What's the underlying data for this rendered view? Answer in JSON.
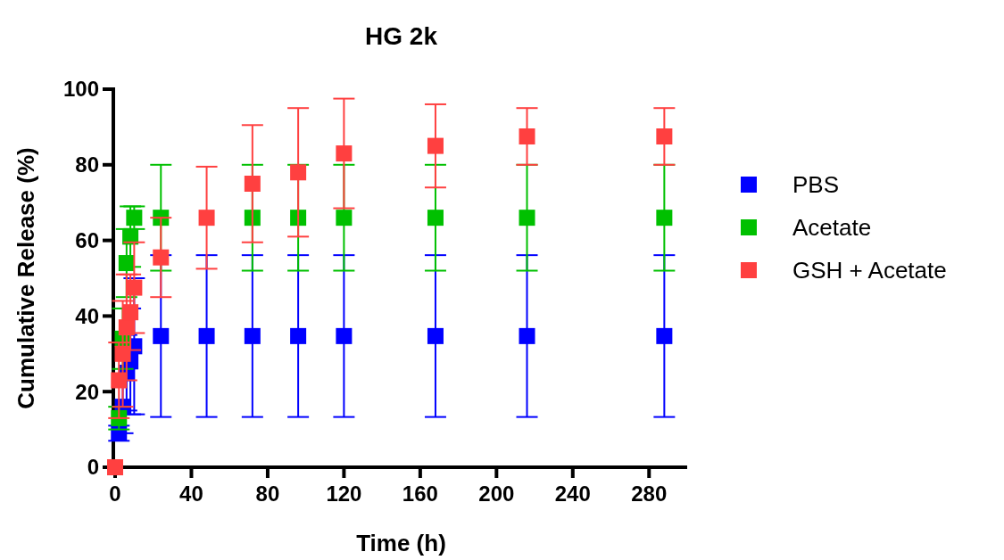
{
  "chart_data": {
    "type": "scatter",
    "title": "HG 2k",
    "xlabel": "Time (h)",
    "ylabel": "Cumulative Release (%)",
    "x": [
      0,
      2,
      4,
      6,
      8,
      10,
      24,
      48,
      72,
      96,
      120,
      168,
      216,
      288
    ],
    "xlim": [
      0,
      300
    ],
    "xticks": [
      0,
      40,
      80,
      120,
      160,
      200,
      240,
      280
    ],
    "ylim": [
      0,
      100
    ],
    "yticks": [
      0,
      20,
      40,
      60,
      80,
      100
    ],
    "marker": "square",
    "legend": "right",
    "grid": false,
    "series": [
      {
        "name": "PBS",
        "color": "#0000ff",
        "values": [
          null,
          9,
          16,
          25,
          28,
          32,
          34.7,
          34.7,
          34.7,
          34.7,
          34.7,
          34.7,
          34.7,
          34.7
        ],
        "errors": [
          null,
          2,
          7,
          10,
          14,
          18,
          21.4,
          21.4,
          21.4,
          21.4,
          21.4,
          21.4,
          21.4,
          21.4
        ]
      },
      {
        "name": "Acetate",
        "color": "#00c000",
        "values": [
          null,
          13,
          34,
          54,
          61,
          66,
          66,
          null,
          66,
          66,
          66,
          66,
          66,
          66
        ],
        "errors": [
          null,
          3,
          8,
          9,
          8,
          3,
          14,
          null,
          14,
          14,
          14,
          14,
          14,
          14
        ]
      },
      {
        "name": "GSH + Acetate",
        "color": "#ff4040",
        "values": [
          0,
          23,
          30,
          37,
          41,
          47.5,
          55.5,
          66,
          75,
          78,
          83,
          85,
          87.5,
          87.5
        ],
        "errors": [
          0,
          10,
          14,
          14,
          10,
          12,
          10.5,
          13.5,
          15.5,
          17,
          14.5,
          11,
          7.5,
          7.5
        ]
      }
    ]
  }
}
